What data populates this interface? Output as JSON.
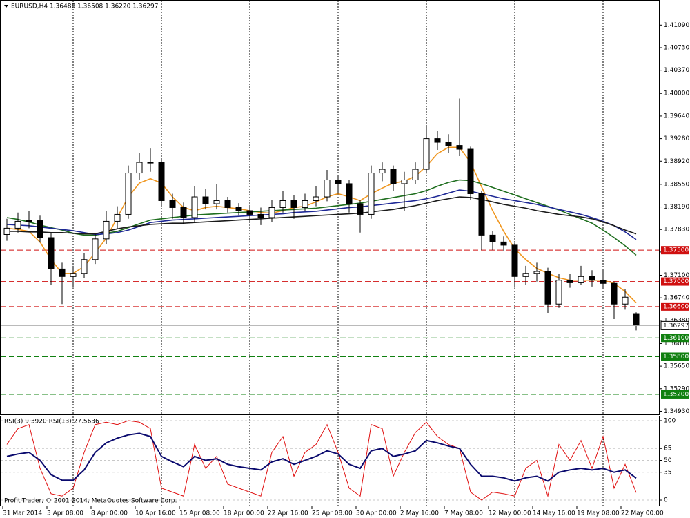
{
  "chart_data": [
    {
      "type": "candlestick",
      "title": "EURUSD,H4  1.36488 1.36508 1.36220 1.36297",
      "categories": [
        "31 Mar 2014",
        null,
        null,
        null,
        "3 Apr 08:00",
        null,
        null,
        null,
        "8 Apr 00:00",
        null,
        null,
        null,
        "10 Apr 16:00",
        null,
        null,
        null,
        "15 Apr 08:00",
        null,
        null,
        null,
        "18 Apr 00:00",
        null,
        null,
        null,
        "22 Apr 16:00",
        null,
        null,
        null,
        "25 Apr 08:00",
        null,
        null,
        null,
        "30 Apr 00:00",
        null,
        null,
        null,
        "2 May 16:00",
        null,
        null,
        null,
        "7 May 08:00",
        null,
        null,
        null,
        "12 May 00:00",
        null,
        null,
        null,
        "14 May 16:00",
        null,
        null,
        null,
        "19 May 08:00",
        null,
        null,
        null,
        "22 May 00:00",
        null
      ],
      "open": [
        1.3775,
        1.3785,
        1.3796,
        1.3797,
        1.377,
        1.372,
        1.3708,
        1.3713,
        1.3735,
        1.3768,
        1.3796,
        1.3807,
        1.3873,
        1.389,
        1.389,
        1.3829,
        1.3818,
        1.3802,
        1.3835,
        1.3824,
        1.3829,
        1.3818,
        1.3813,
        1.3807,
        1.3802,
        1.3818,
        1.3829,
        1.3818,
        1.3829,
        1.3835,
        1.3862,
        1.3856,
        1.3824,
        1.3807,
        1.3873,
        1.3879,
        1.3856,
        1.3862,
        1.3879,
        1.3928,
        1.3922,
        1.3917,
        1.3911,
        1.384,
        1.3774,
        1.3763,
        1.3758,
        1.3708,
        1.3713,
        1.3716,
        1.3664,
        1.3702,
        1.3698,
        1.3708,
        1.3702,
        1.3697,
        1.3664,
        1.36488
      ],
      "high": [
        1.38,
        1.381,
        1.3812,
        1.3805,
        1.3778,
        1.373,
        1.3725,
        1.3745,
        1.3775,
        1.3812,
        1.382,
        1.3885,
        1.3905,
        1.3912,
        1.3895,
        1.384,
        1.3826,
        1.3852,
        1.3848,
        1.3855,
        1.3835,
        1.3825,
        1.3822,
        1.3818,
        1.383,
        1.3845,
        1.3838,
        1.384,
        1.3852,
        1.3878,
        1.387,
        1.3862,
        1.383,
        1.3885,
        1.389,
        1.3885,
        1.3875,
        1.389,
        1.3948,
        1.394,
        1.3935,
        1.3992,
        1.3915,
        1.3845,
        1.378,
        1.3772,
        1.3762,
        1.3725,
        1.373,
        1.3722,
        1.3712,
        1.3712,
        1.3725,
        1.3718,
        1.372,
        1.37,
        1.3688,
        1.36508
      ],
      "low": [
        1.3765,
        1.3778,
        1.3785,
        1.3762,
        1.3695,
        1.3664,
        1.369,
        1.3705,
        1.3728,
        1.376,
        1.3785,
        1.38,
        1.3862,
        1.3875,
        1.382,
        1.38,
        1.3792,
        1.3795,
        1.3815,
        1.3815,
        1.381,
        1.3805,
        1.3795,
        1.379,
        1.3795,
        1.381,
        1.38,
        1.3812,
        1.382,
        1.3828,
        1.384,
        1.381,
        1.3778,
        1.38,
        1.386,
        1.3845,
        1.3812,
        1.3855,
        1.3872,
        1.391,
        1.3905,
        1.39,
        1.383,
        1.375,
        1.375,
        1.3748,
        1.369,
        1.3695,
        1.37,
        1.365,
        1.3658,
        1.369,
        1.3695,
        1.3692,
        1.3688,
        1.364,
        1.3655,
        1.3622
      ],
      "close": [
        1.3785,
        1.3796,
        1.3797,
        1.377,
        1.372,
        1.3708,
        1.3713,
        1.3735,
        1.3768,
        1.3796,
        1.3807,
        1.3873,
        1.389,
        1.389,
        1.3829,
        1.3818,
        1.3802,
        1.3835,
        1.3824,
        1.3829,
        1.3818,
        1.3813,
        1.3807,
        1.3802,
        1.3818,
        1.3829,
        1.3818,
        1.3829,
        1.3835,
        1.3862,
        1.3856,
        1.3824,
        1.3807,
        1.3873,
        1.3879,
        1.3856,
        1.3862,
        1.3879,
        1.3928,
        1.3922,
        1.3917,
        1.3911,
        1.384,
        1.3774,
        1.3763,
        1.3758,
        1.3708,
        1.3713,
        1.3716,
        1.3664,
        1.3702,
        1.3698,
        1.3708,
        1.3702,
        1.3697,
        1.3664,
        1.3675,
        1.36297
      ],
      "overlays": [
        {
          "color": "#f0961e",
          "values": [
            1.3785,
            1.3783,
            1.378,
            1.3763,
            1.3735,
            1.3713,
            1.3713,
            1.3724,
            1.3746,
            1.3769,
            1.3802,
            1.3835,
            1.3857,
            1.3864,
            1.3857,
            1.3835,
            1.3818,
            1.3813,
            1.3818,
            1.382,
            1.3818,
            1.3816,
            1.3813,
            1.381,
            1.3809,
            1.3813,
            1.3818,
            1.382,
            1.3827,
            1.3835,
            1.384,
            1.3835,
            1.3829,
            1.384,
            1.3849,
            1.3857,
            1.386,
            1.3868,
            1.3884,
            1.3904,
            1.3914,
            1.3914,
            1.389,
            1.3851,
            1.3813,
            1.378,
            1.3752,
            1.3735,
            1.3721,
            1.3713,
            1.3706,
            1.3702,
            1.3702,
            1.3702,
            1.3702,
            1.3697,
            1.3684,
            1.3666
          ]
        },
        {
          "color": "#1e6e1e",
          "values": [
            1.3802,
            1.3799,
            1.3795,
            1.379,
            1.3786,
            1.3782,
            1.3777,
            1.3774,
            1.3774,
            1.3777,
            1.378,
            1.3786,
            1.3792,
            1.3798,
            1.38,
            1.3802,
            1.3804,
            1.3806,
            1.3807,
            1.3808,
            1.3809,
            1.381,
            1.3811,
            1.3812,
            1.3813,
            1.3814,
            1.3815,
            1.3816,
            1.3817,
            1.3819,
            1.3821,
            1.3823,
            1.3825,
            1.3828,
            1.3831,
            1.3834,
            1.3837,
            1.384,
            1.3845,
            1.3852,
            1.3858,
            1.3862,
            1.3861,
            1.3856,
            1.385,
            1.3844,
            1.3838,
            1.3832,
            1.3826,
            1.382,
            1.3814,
            1.3807,
            1.38,
            1.3793,
            1.3782,
            1.377,
            1.3757,
            1.3742
          ]
        },
        {
          "color": "#1e2896",
          "values": [
            1.3791,
            1.379,
            1.3789,
            1.3787,
            1.3785,
            1.3783,
            1.3781,
            1.3778,
            1.3775,
            1.3776,
            1.3778,
            1.3782,
            1.3788,
            1.3794,
            1.3796,
            1.3798,
            1.3799,
            1.38,
            1.3801,
            1.3802,
            1.3803,
            1.3804,
            1.3805,
            1.3806,
            1.3807,
            1.3808,
            1.381,
            1.3811,
            1.3812,
            1.3814,
            1.3816,
            1.3818,
            1.3819,
            1.3821,
            1.3823,
            1.3825,
            1.3827,
            1.3829,
            1.3832,
            1.3836,
            1.3841,
            1.3846,
            1.3844,
            1.384,
            1.3836,
            1.3832,
            1.3829,
            1.3826,
            1.3823,
            1.3819,
            1.3815,
            1.3811,
            1.3807,
            1.3802,
            1.3796,
            1.3789,
            1.3779,
            1.3767
          ]
        },
        {
          "color": "#1a1a1a",
          "values": [
            1.378,
            1.378,
            1.3779,
            1.3779,
            1.3778,
            1.3778,
            1.3777,
            1.3776,
            1.3776,
            1.378,
            1.3784,
            1.3787,
            1.3789,
            1.3791,
            1.3792,
            1.3793,
            1.3793,
            1.3794,
            1.3795,
            1.3796,
            1.3797,
            1.3798,
            1.3799,
            1.38,
            1.3801,
            1.3802,
            1.3803,
            1.3804,
            1.3805,
            1.3806,
            1.3807,
            1.3808,
            1.3809,
            1.3811,
            1.3813,
            1.3815,
            1.3818,
            1.3821,
            1.3825,
            1.3829,
            1.3832,
            1.3835,
            1.3834,
            1.3831,
            1.3827,
            1.3823,
            1.382,
            1.3817,
            1.3813,
            1.381,
            1.3807,
            1.3805,
            1.3803,
            1.38,
            1.3795,
            1.3789,
            1.3782,
            1.3776
          ]
        }
      ],
      "ylim": [
        1.3488,
        1.4149
      ],
      "yticks": [
        {
          "value": 1.4109,
          "label": "1.41090"
        },
        {
          "value": 1.4073,
          "label": "1.40730"
        },
        {
          "value": 1.4037,
          "label": "1.40370"
        },
        {
          "value": 1.4,
          "label": "1.40000"
        },
        {
          "value": 1.3964,
          "label": "1.39640"
        },
        {
          "value": 1.3928,
          "label": "1.39280"
        },
        {
          "value": 1.3892,
          "label": "1.38920"
        },
        {
          "value": 1.3855,
          "label": "1.38550"
        },
        {
          "value": 1.3819,
          "label": "1.38190"
        },
        {
          "value": 1.3783,
          "label": "1.37830"
        },
        {
          "value": 1.3747,
          "label": "1.37470"
        },
        {
          "value": 1.371,
          "label": "1.37100"
        },
        {
          "value": 1.3674,
          "label": "1.36740"
        },
        {
          "value": 1.3638,
          "label": "1.36380"
        },
        {
          "value": 1.3601,
          "label": "1.36010"
        },
        {
          "value": 1.3565,
          "label": "1.35650"
        },
        {
          "value": 1.3529,
          "label": "1.35290"
        },
        {
          "value": 1.3493,
          "label": "1.34930"
        }
      ],
      "levels": [
        {
          "value": 1.375,
          "label": "1.37500",
          "color": "#d01010"
        },
        {
          "value": 1.37,
          "label": "1.37000",
          "color": "#d01010"
        },
        {
          "value": 1.366,
          "label": "1.36600",
          "color": "#d01010"
        },
        {
          "value": 1.361,
          "label": "1.36100",
          "color": "#108010"
        },
        {
          "value": 1.358,
          "label": "1.35800",
          "color": "#108010"
        },
        {
          "value": 1.352,
          "label": "1.35200",
          "color": "#108010"
        }
      ]
    },
    {
      "type": "line",
      "title": "RSI(3) 9.3920  RSI(13) 27.5636",
      "annotation": "Profit-Trader, © 2001-2014, MetaQuotes Software Corp.",
      "series": [
        {
          "color": "#e01010",
          "values": [
            70,
            90,
            95,
            40,
            8,
            5,
            15,
            60,
            95,
            98,
            95,
            100,
            98,
            90,
            15,
            10,
            5,
            70,
            40,
            55,
            20,
            15,
            10,
            5,
            60,
            80,
            30,
            60,
            70,
            95,
            60,
            15,
            5,
            95,
            90,
            30,
            60,
            85,
            98,
            80,
            70,
            65,
            10,
            0,
            10,
            8,
            5,
            40,
            50,
            5,
            70,
            50,
            75,
            40,
            80,
            15,
            45,
            9.392
          ]
        },
        {
          "color": "#0a0a6e",
          "values": [
            55,
            58,
            60,
            50,
            32,
            25,
            25,
            38,
            60,
            72,
            78,
            82,
            84,
            80,
            55,
            48,
            42,
            55,
            50,
            52,
            45,
            42,
            40,
            38,
            48,
            52,
            45,
            50,
            55,
            62,
            58,
            45,
            40,
            62,
            65,
            55,
            58,
            62,
            75,
            72,
            68,
            65,
            45,
            30,
            30,
            28,
            24,
            28,
            30,
            24,
            35,
            38,
            40,
            38,
            40,
            35,
            38,
            27.5636
          ]
        }
      ],
      "ylim": [
        -7.8,
        105.2
      ],
      "yticks": [
        100,
        65,
        50,
        35,
        0
      ]
    }
  ]
}
